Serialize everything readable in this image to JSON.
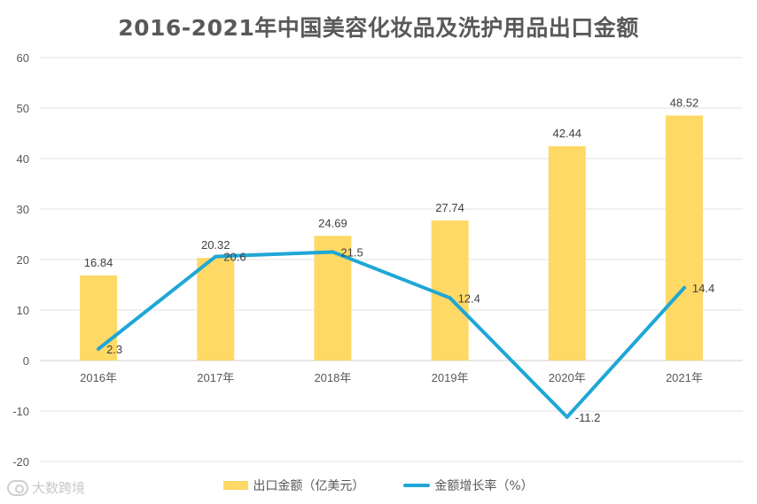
{
  "title": "2016-2021年中国美容化妆品及洗护用品出口金额",
  "chart_data": {
    "type": "bar",
    "title": "2016-2021年中国美容化妆品及洗护用品出口金额",
    "categories": [
      "2016年",
      "2017年",
      "2018年",
      "2019年",
      "2020年",
      "2021年"
    ],
    "series": [
      {
        "name": "出口金额（亿美元）",
        "type": "bar",
        "color": "#FFD966",
        "values": [
          16.84,
          20.32,
          24.69,
          27.74,
          42.44,
          48.52
        ],
        "labels": [
          "16.84",
          "20.32",
          "24.69",
          "27.74",
          "42.44",
          "48.52"
        ]
      },
      {
        "name": "金额增长率（%）",
        "type": "line",
        "color": "#1EA7D6",
        "values": [
          2.3,
          20.6,
          21.5,
          12.4,
          -11.2,
          14.4
        ],
        "labels": [
          "2.3",
          "20.6",
          "21.5",
          "12.4",
          "-11.2",
          "14.4"
        ]
      }
    ],
    "yticks": [
      "60",
      "50",
      "40",
      "30",
      "20",
      "10",
      "0",
      "-10",
      "-20"
    ],
    "ylim": [
      -20,
      60
    ],
    "grid": true,
    "legend": "bottom"
  },
  "legend": {
    "bar_label": "出口金额（亿美元）",
    "line_label": "金额增长率（%）"
  },
  "watermark": {
    "text": "大数跨境"
  }
}
